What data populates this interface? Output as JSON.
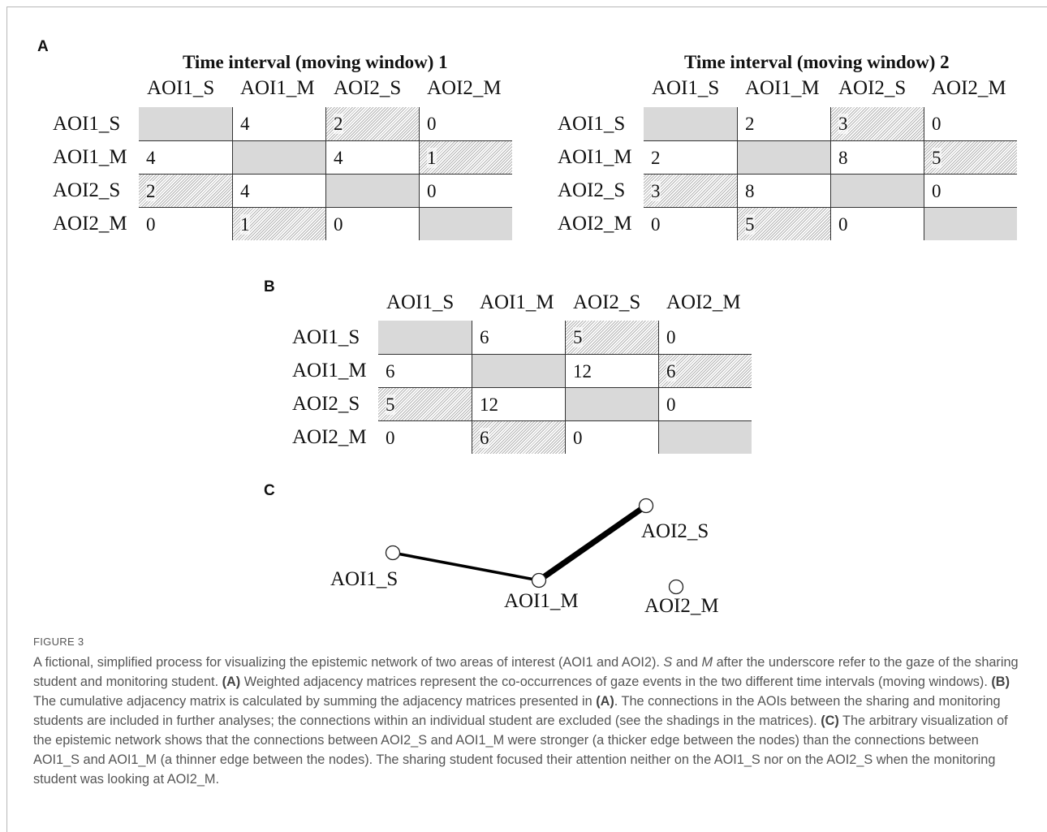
{
  "panel_labels": {
    "a": "A",
    "b": "B",
    "c": "C"
  },
  "matrix1": {
    "title": "Time interval (moving window) 1",
    "headers": [
      "AOI1_S",
      "AOI1_M",
      "AOI2_S",
      "AOI2_M"
    ],
    "rows": [
      {
        "label": "AOI1_S",
        "cells": [
          "",
          "4",
          "2",
          "0"
        ]
      },
      {
        "label": "AOI1_M",
        "cells": [
          "4",
          "",
          "4",
          "1"
        ]
      },
      {
        "label": "AOI2_S",
        "cells": [
          "2",
          "4",
          "",
          "0"
        ]
      },
      {
        "label": "AOI2_M",
        "cells": [
          "0",
          "1",
          "0",
          ""
        ]
      }
    ]
  },
  "matrix2": {
    "title": "Time interval (moving window) 2",
    "headers": [
      "AOI1_S",
      "AOI1_M",
      "AOI2_S",
      "AOI2_M"
    ],
    "rows": [
      {
        "label": "AOI1_S",
        "cells": [
          "",
          "2",
          "3",
          "0"
        ]
      },
      {
        "label": "AOI1_M",
        "cells": [
          "2",
          "",
          "8",
          "5"
        ]
      },
      {
        "label": "AOI2_S",
        "cells": [
          "3",
          "8",
          "",
          "0"
        ]
      },
      {
        "label": "AOI2_M",
        "cells": [
          "0",
          "5",
          "0",
          ""
        ]
      }
    ]
  },
  "matrix_cumulative": {
    "headers": [
      "AOI1_S",
      "AOI1_M",
      "AOI2_S",
      "AOI2_M"
    ],
    "rows": [
      {
        "label": "AOI1_S",
        "cells": [
          "",
          "6",
          "5",
          "0"
        ]
      },
      {
        "label": "AOI1_M",
        "cells": [
          "6",
          "",
          "12",
          "6"
        ]
      },
      {
        "label": "AOI2_S",
        "cells": [
          "5",
          "12",
          "",
          "0"
        ]
      },
      {
        "label": "AOI2_M",
        "cells": [
          "0",
          "6",
          "0",
          ""
        ]
      }
    ]
  },
  "network": {
    "nodes": [
      {
        "id": "AOI1_S",
        "label": "AOI1_S"
      },
      {
        "id": "AOI1_M",
        "label": "AOI1_M"
      },
      {
        "id": "AOI2_S",
        "label": "AOI2_S"
      },
      {
        "id": "AOI2_M",
        "label": "AOI2_M"
      }
    ],
    "edges": [
      {
        "from": "AOI1_S",
        "to": "AOI1_M",
        "weight": 6
      },
      {
        "from": "AOI1_M",
        "to": "AOI2_S",
        "weight": 12
      }
    ]
  },
  "caption": {
    "label": "FIGURE 3",
    "parts": [
      {
        "t": "A fictional, simplified process for visualizing the epistemic network of two areas of interest (AOI1 and AOI2). "
      },
      {
        "t": "S",
        "s": "i"
      },
      {
        "t": " and "
      },
      {
        "t": "M",
        "s": "i"
      },
      {
        "t": " after the underscore refer to the gaze of the sharing student and monitoring student. "
      },
      {
        "t": "(A)",
        "s": "b"
      },
      {
        "t": " Weighted adjacency matrices represent the co-occurrences of gaze events in the two different time intervals (moving windows). "
      },
      {
        "t": "(B)",
        "s": "b"
      },
      {
        "t": " The cumulative adjacency matrix is calculated by summing the adjacency matrices presented in "
      },
      {
        "t": "(A)",
        "s": "b"
      },
      {
        "t": ". The connections in the AOIs between the sharing and monitoring students are included in further analyses; the connections within an individual student are excluded (see the shadings in the matrices). "
      },
      {
        "t": "(C)",
        "s": "b"
      },
      {
        "t": " The arbitrary visualization of the epistemic network shows that the connections between AOI2_S and AOI1_M were stronger (a thicker edge between the nodes) than the connections between AOI1_S and AOI1_M (a thinner edge between the nodes). The sharing student focused their attention neither on the AOI1_S nor on the AOI2_S when the monitoring student was looking at AOI2_M."
      }
    ]
  }
}
